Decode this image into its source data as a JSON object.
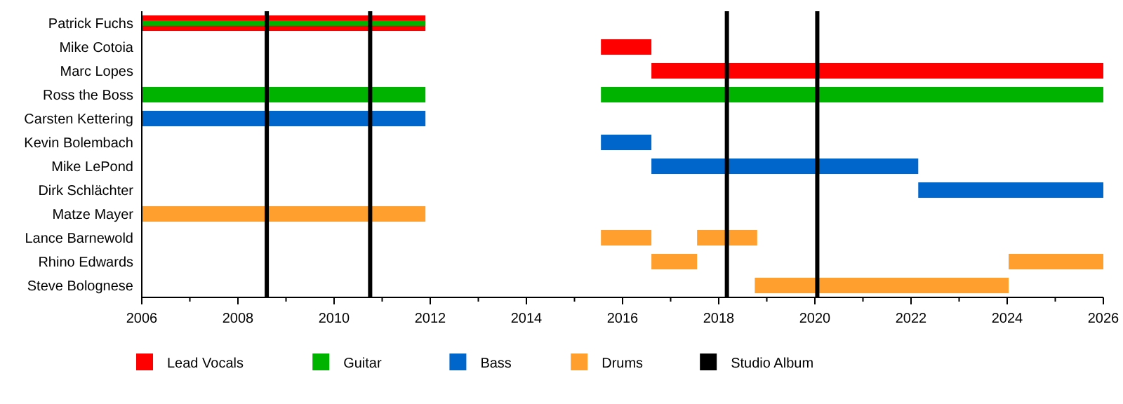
{
  "chart_data": {
    "type": "bar",
    "orientation": "horizontal",
    "categories": [
      "Patrick Fuchs",
      "Mike Cotoia",
      "Marc Lopes",
      "Ross the Boss",
      "Carsten Kettering",
      "Kevin Bolembach",
      "Mike LePond",
      "Dirk Schlächter",
      "Matze Mayer",
      "Lance Barnewold",
      "Rhino Edwards",
      "Steve Bolognese"
    ],
    "series": [
      {
        "name": "Lead Vocals",
        "color": "#ff0000",
        "base": [
          2006,
          2015.55,
          2016.6,
          null,
          null,
          null,
          null,
          null,
          null,
          null,
          null,
          null
        ],
        "values": [
          5.9,
          1.05,
          9.4,
          null,
          null,
          null,
          null,
          null,
          null,
          null,
          null,
          null
        ]
      },
      {
        "name": "Guitar",
        "color": "#00b300",
        "base": [
          2006,
          null,
          null,
          2006,
          null,
          null,
          null,
          null,
          null,
          null,
          null,
          null
        ],
        "values": [
          5.9,
          null,
          null,
          5.9,
          null,
          null,
          null,
          null,
          null,
          null,
          null,
          null
        ]
      },
      {
        "color": "#00b300",
        "base": [
          null,
          null,
          null,
          2015.55,
          null,
          null,
          null,
          null,
          null,
          null,
          null,
          null
        ],
        "values": [
          null,
          null,
          null,
          10.45,
          null,
          null,
          null,
          null,
          null,
          null,
          null,
          null
        ]
      },
      {
        "name": "Bass",
        "color": "#0066cc",
        "base": [
          null,
          null,
          null,
          null,
          2006,
          2015.55,
          2016.6,
          2022.15,
          null,
          null,
          null,
          null
        ],
        "values": [
          null,
          null,
          null,
          null,
          5.9,
          1.05,
          5.55,
          3.85,
          null,
          null,
          null,
          null
        ]
      },
      {
        "name": "Drums",
        "color": "#ff9f2e",
        "base": [
          null,
          null,
          null,
          null,
          null,
          null,
          null,
          null,
          2006,
          2015.55,
          2016.6,
          2018.75
        ],
        "values": [
          null,
          null,
          null,
          null,
          null,
          null,
          null,
          null,
          5.9,
          1.05,
          0.95,
          5.28
        ]
      },
      {
        "color": "#ff9f2e",
        "base": [
          null,
          null,
          null,
          null,
          null,
          null,
          null,
          null,
          null,
          2017.55,
          2024.03,
          null
        ],
        "values": [
          null,
          null,
          null,
          null,
          null,
          null,
          null,
          null,
          null,
          1.25,
          1.97,
          null
        ]
      }
    ],
    "ref_lines": [
      {
        "axis": "x",
        "value": 2008.6,
        "label": "Studio Album",
        "color": "#000000"
      },
      {
        "axis": "x",
        "value": 2010.75,
        "color": "#000000"
      },
      {
        "axis": "x",
        "value": 2018.17,
        "color": "#000000"
      },
      {
        "axis": "x",
        "value": 2020.05,
        "color": "#000000"
      }
    ],
    "xlim": [
      2006,
      2026
    ],
    "xticks": [
      2006,
      {
        "value": 2007,
        "label": null
      },
      2008,
      {
        "value": 2009,
        "label": null
      },
      2010,
      {
        "value": 2011,
        "label": null
      },
      2012,
      {
        "value": 2013,
        "label": null
      },
      2014,
      {
        "value": 2015,
        "label": null
      },
      2016,
      {
        "value": 2017,
        "label": null
      },
      2018,
      {
        "value": 2019,
        "label": null
      },
      2020,
      {
        "value": 2021,
        "label": null
      },
      2022,
      {
        "value": 2023,
        "label": null
      },
      2024,
      {
        "value": 2025,
        "label": null
      },
      2026
    ],
    "grid": false,
    "legend": "bottom"
  }
}
